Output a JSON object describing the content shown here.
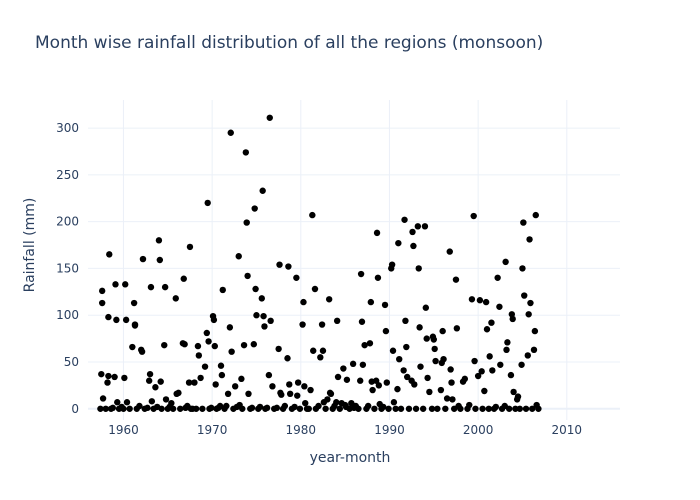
{
  "chart_data": {
    "type": "scatter",
    "title": "Month wise rainfall distribution of all the regions (monsoon)",
    "xlabel": "year-month",
    "ylabel": "Rainfall (mm)",
    "xlim": [
      1956,
      2016
    ],
    "ylim": [
      -12,
      330
    ],
    "xticks": [
      1960,
      1970,
      1980,
      1990,
      2000,
      2010
    ],
    "yticks": [
      0,
      50,
      100,
      150,
      200,
      250,
      300
    ],
    "grid": true,
    "legend": "none",
    "marker_color": "#000000",
    "series": [
      {
        "points": [
          [
            1957.4,
            0
          ],
          [
            1957.5,
            37
          ],
          [
            1957.6,
            126
          ],
          [
            1957.6,
            113
          ],
          [
            1957.7,
            11
          ],
          [
            1958.0,
            0
          ],
          [
            1958.2,
            28
          ],
          [
            1958.3,
            35
          ],
          [
            1958.3,
            98
          ],
          [
            1958.4,
            165
          ],
          [
            1958.6,
            0
          ],
          [
            1958.8,
            1
          ],
          [
            1959.0,
            34
          ],
          [
            1959.1,
            133
          ],
          [
            1959.2,
            95
          ],
          [
            1959.3,
            7
          ],
          [
            1959.5,
            0
          ],
          [
            1959.8,
            2
          ],
          [
            1960.0,
            0
          ],
          [
            1960.1,
            33
          ],
          [
            1960.2,
            133
          ],
          [
            1960.3,
            95
          ],
          [
            1960.4,
            7
          ],
          [
            1960.7,
            0
          ],
          [
            1961.0,
            66
          ],
          [
            1961.2,
            113
          ],
          [
            1961.3,
            89
          ],
          [
            1961.3,
            90
          ],
          [
            1961.5,
            0
          ],
          [
            1961.8,
            3
          ],
          [
            1962.0,
            63
          ],
          [
            1962.1,
            61
          ],
          [
            1962.2,
            160
          ],
          [
            1962.4,
            0
          ],
          [
            1962.7,
            1
          ],
          [
            1962.9,
            30
          ],
          [
            1963.0,
            37
          ],
          [
            1963.1,
            130
          ],
          [
            1963.2,
            8
          ],
          [
            1963.4,
            0
          ],
          [
            1963.6,
            23
          ],
          [
            1963.8,
            2
          ],
          [
            1964.0,
            180
          ],
          [
            1964.1,
            159
          ],
          [
            1964.2,
            29
          ],
          [
            1964.3,
            0
          ],
          [
            1964.6,
            68
          ],
          [
            1964.7,
            130
          ],
          [
            1964.8,
            10
          ],
          [
            1965.0,
            0
          ],
          [
            1965.2,
            2
          ],
          [
            1965.4,
            6
          ],
          [
            1965.6,
            0
          ],
          [
            1965.9,
            118
          ],
          [
            1966.0,
            16
          ],
          [
            1966.2,
            17
          ],
          [
            1966.4,
            0
          ],
          [
            1966.7,
            70
          ],
          [
            1966.8,
            139
          ],
          [
            1966.9,
            69
          ],
          [
            1967.0,
            1
          ],
          [
            1967.2,
            3
          ],
          [
            1967.4,
            28
          ],
          [
            1967.5,
            173
          ],
          [
            1967.6,
            0
          ],
          [
            1967.8,
            0
          ],
          [
            1968.0,
            28
          ],
          [
            1968.2,
            0
          ],
          [
            1968.4,
            67
          ],
          [
            1968.5,
            57
          ],
          [
            1968.7,
            33
          ],
          [
            1968.9,
            0
          ],
          [
            1969.2,
            45
          ],
          [
            1969.4,
            81
          ],
          [
            1969.5,
            220
          ],
          [
            1969.6,
            72
          ],
          [
            1969.7,
            0
          ],
          [
            1969.9,
            1
          ],
          [
            1970.1,
            99
          ],
          [
            1970.2,
            95
          ],
          [
            1970.3,
            67
          ],
          [
            1970.4,
            26
          ],
          [
            1970.5,
            0
          ],
          [
            1970.7,
            1
          ],
          [
            1970.9,
            3
          ],
          [
            1971.0,
            46
          ],
          [
            1971.1,
            36
          ],
          [
            1971.2,
            127
          ],
          [
            1971.4,
            0
          ],
          [
            1971.6,
            3
          ],
          [
            1971.8,
            16
          ],
          [
            1972.0,
            87
          ],
          [
            1972.1,
            295
          ],
          [
            1972.2,
            61
          ],
          [
            1972.4,
            0
          ],
          [
            1972.6,
            24
          ],
          [
            1972.8,
            2
          ],
          [
            1973.0,
            163
          ],
          [
            1973.1,
            4
          ],
          [
            1973.3,
            32
          ],
          [
            1973.4,
            0
          ],
          [
            1973.6,
            68
          ],
          [
            1973.8,
            274
          ],
          [
            1973.9,
            199
          ],
          [
            1974.0,
            142
          ],
          [
            1974.1,
            16
          ],
          [
            1974.3,
            0
          ],
          [
            1974.5,
            1
          ],
          [
            1974.7,
            69
          ],
          [
            1974.8,
            214
          ],
          [
            1974.9,
            128
          ],
          [
            1975.0,
            100
          ],
          [
            1975.2,
            0
          ],
          [
            1975.4,
            2
          ],
          [
            1975.6,
            118
          ],
          [
            1975.7,
            233
          ],
          [
            1975.8,
            99
          ],
          [
            1975.9,
            88
          ],
          [
            1976.0,
            0
          ],
          [
            1976.2,
            1
          ],
          [
            1976.4,
            36
          ],
          [
            1976.5,
            311
          ],
          [
            1976.6,
            94
          ],
          [
            1976.8,
            24
          ],
          [
            1977.0,
            0
          ],
          [
            1977.3,
            1
          ],
          [
            1977.5,
            64
          ],
          [
            1977.6,
            154
          ],
          [
            1977.7,
            17
          ],
          [
            1977.8,
            15
          ],
          [
            1978.0,
            0
          ],
          [
            1978.2,
            3
          ],
          [
            1978.5,
            54
          ],
          [
            1978.6,
            152
          ],
          [
            1978.7,
            26
          ],
          [
            1978.8,
            16
          ],
          [
            1979.0,
            0
          ],
          [
            1979.3,
            2
          ],
          [
            1979.5,
            140
          ],
          [
            1979.6,
            14
          ],
          [
            1979.7,
            28
          ],
          [
            1979.9,
            0
          ],
          [
            1980.2,
            90
          ],
          [
            1980.3,
            114
          ],
          [
            1980.4,
            24
          ],
          [
            1980.5,
            6
          ],
          [
            1980.7,
            0
          ],
          [
            1980.9,
            0
          ],
          [
            1981.1,
            20
          ],
          [
            1981.3,
            207
          ],
          [
            1981.4,
            62
          ],
          [
            1981.6,
            128
          ],
          [
            1981.7,
            0
          ],
          [
            1982.0,
            3
          ],
          [
            1982.2,
            55
          ],
          [
            1982.4,
            90
          ],
          [
            1982.5,
            62
          ],
          [
            1982.6,
            7
          ],
          [
            1982.8,
            0
          ],
          [
            1983.0,
            10
          ],
          [
            1983.2,
            117
          ],
          [
            1983.3,
            17
          ],
          [
            1983.4,
            16
          ],
          [
            1983.6,
            0
          ],
          [
            1983.8,
            3
          ],
          [
            1984.0,
            7
          ],
          [
            1984.1,
            94
          ],
          [
            1984.2,
            34
          ],
          [
            1984.4,
            0
          ],
          [
            1984.6,
            6
          ],
          [
            1984.8,
            43
          ],
          [
            1985.0,
            4
          ],
          [
            1985.1,
            2
          ],
          [
            1985.2,
            31
          ],
          [
            1985.5,
            0
          ],
          [
            1985.7,
            6
          ],
          [
            1985.9,
            48
          ],
          [
            1986.0,
            1
          ],
          [
            1986.2,
            3
          ],
          [
            1986.5,
            0
          ],
          [
            1986.7,
            30
          ],
          [
            1986.8,
            144
          ],
          [
            1986.9,
            93
          ],
          [
            1987.0,
            47
          ],
          [
            1987.2,
            68
          ],
          [
            1987.4,
            0
          ],
          [
            1987.6,
            3
          ],
          [
            1987.8,
            70
          ],
          [
            1987.9,
            114
          ],
          [
            1988.0,
            29
          ],
          [
            1988.1,
            20
          ],
          [
            1988.3,
            0
          ],
          [
            1988.5,
            30
          ],
          [
            1988.6,
            188
          ],
          [
            1988.7,
            140
          ],
          [
            1988.8,
            25
          ],
          [
            1988.9,
            5
          ],
          [
            1989.1,
            0
          ],
          [
            1989.3,
            2
          ],
          [
            1989.5,
            111
          ],
          [
            1989.6,
            83
          ],
          [
            1989.7,
            28
          ],
          [
            1989.9,
            0
          ],
          [
            1990.2,
            150
          ],
          [
            1990.3,
            154
          ],
          [
            1990.4,
            62
          ],
          [
            1990.5,
            7
          ],
          [
            1990.7,
            0
          ],
          [
            1990.9,
            21
          ],
          [
            1991.0,
            177
          ],
          [
            1991.1,
            53
          ],
          [
            1991.3,
            0
          ],
          [
            1991.6,
            41
          ],
          [
            1991.7,
            202
          ],
          [
            1991.8,
            94
          ],
          [
            1991.9,
            66
          ],
          [
            1992.0,
            34
          ],
          [
            1992.2,
            0
          ],
          [
            1992.5,
            30
          ],
          [
            1992.6,
            189
          ],
          [
            1992.7,
            174
          ],
          [
            1992.8,
            26
          ],
          [
            1993.0,
            0
          ],
          [
            1993.2,
            195
          ],
          [
            1993.3,
            150
          ],
          [
            1993.4,
            87
          ],
          [
            1993.5,
            45
          ],
          [
            1993.8,
            0
          ],
          [
            1994.0,
            195
          ],
          [
            1994.1,
            108
          ],
          [
            1994.2,
            75
          ],
          [
            1994.3,
            33
          ],
          [
            1994.5,
            18
          ],
          [
            1994.8,
            0
          ],
          [
            1994.9,
            77
          ],
          [
            1995.0,
            74
          ],
          [
            1995.1,
            64
          ],
          [
            1995.2,
            51
          ],
          [
            1995.4,
            0
          ],
          [
            1995.8,
            20
          ],
          [
            1995.9,
            49
          ],
          [
            1996.0,
            83
          ],
          [
            1996.1,
            53
          ],
          [
            1996.3,
            0
          ],
          [
            1996.5,
            11
          ],
          [
            1996.8,
            168
          ],
          [
            1996.9,
            42
          ],
          [
            1997.0,
            28
          ],
          [
            1997.1,
            10
          ],
          [
            1997.3,
            0
          ],
          [
            1997.5,
            138
          ],
          [
            1997.6,
            86
          ],
          [
            1997.8,
            3
          ],
          [
            1998.0,
            0
          ],
          [
            1998.3,
            29
          ],
          [
            1998.5,
            32
          ],
          [
            1998.8,
            0
          ],
          [
            1999.0,
            4
          ],
          [
            1999.3,
            117
          ],
          [
            1999.5,
            206
          ],
          [
            1999.6,
            51
          ],
          [
            1999.7,
            0
          ],
          [
            2000.0,
            35
          ],
          [
            2000.2,
            116
          ],
          [
            2000.4,
            40
          ],
          [
            2000.5,
            0
          ],
          [
            2000.7,
            19
          ],
          [
            2000.9,
            114
          ],
          [
            2001.0,
            85
          ],
          [
            2001.2,
            0
          ],
          [
            2001.3,
            56
          ],
          [
            2001.5,
            92
          ],
          [
            2001.6,
            41
          ],
          [
            2001.8,
            0
          ],
          [
            2002.0,
            2
          ],
          [
            2002.2,
            140
          ],
          [
            2002.4,
            109
          ],
          [
            2002.5,
            47
          ],
          [
            2002.7,
            0
          ],
          [
            2003.0,
            3
          ],
          [
            2003.1,
            157
          ],
          [
            2003.2,
            63
          ],
          [
            2003.3,
            71
          ],
          [
            2003.5,
            0
          ],
          [
            2003.7,
            36
          ],
          [
            2003.8,
            101
          ],
          [
            2003.9,
            96
          ],
          [
            2004.0,
            18
          ],
          [
            2004.2,
            0
          ],
          [
            2004.4,
            10
          ],
          [
            2004.5,
            13
          ],
          [
            2004.7,
            0
          ],
          [
            2004.9,
            47
          ],
          [
            2005.0,
            150
          ],
          [
            2005.1,
            199
          ],
          [
            2005.2,
            121
          ],
          [
            2005.4,
            0
          ],
          [
            2005.6,
            57
          ],
          [
            2005.7,
            101
          ],
          [
            2005.8,
            181
          ],
          [
            2005.9,
            113
          ],
          [
            2006.1,
            0
          ],
          [
            2006.3,
            63
          ],
          [
            2006.4,
            83
          ],
          [
            2006.5,
            207
          ],
          [
            2006.6,
            4
          ],
          [
            2006.8,
            0
          ]
        ]
      }
    ]
  }
}
